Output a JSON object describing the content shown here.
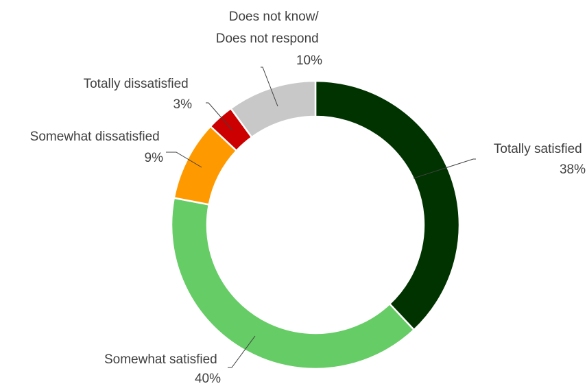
{
  "chart_data": {
    "type": "pie",
    "variant": "donut",
    "start_angle_deg": 0,
    "direction": "clockwise",
    "categories": [
      "Totally satisfied",
      "Somewhat satisfied",
      "Somewhat dissatisfied",
      "Totally dissatisfied",
      "Does not know/ Does not respond"
    ],
    "values": [
      38,
      40,
      9,
      3,
      10
    ],
    "value_labels": [
      "38%",
      "40%",
      "9%",
      "3%",
      "10%"
    ],
    "colors": [
      "#003300",
      "#66cc66",
      "#ff9900",
      "#cc0000",
      "#c8c8c8"
    ],
    "label_lines": [
      [
        "Totally satisfied",
        "38%"
      ],
      [
        "Somewhat satisfied",
        "40%"
      ],
      [
        "Somewhat dissatisfied",
        "9%"
      ],
      [
        "Totally dissatisfied",
        "3%"
      ],
      [
        "Does not know/",
        "Does not respond",
        "10%"
      ]
    ],
    "legend": "none",
    "title": ""
  }
}
